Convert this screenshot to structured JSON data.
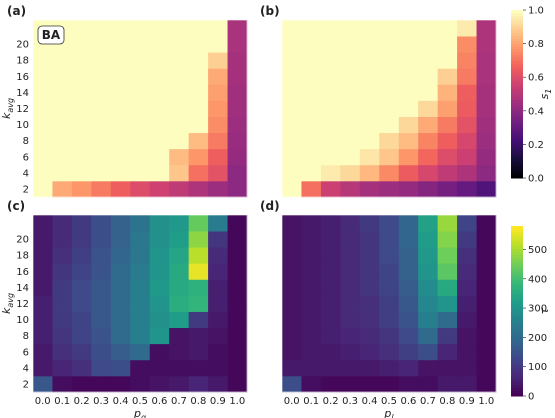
{
  "figure": {
    "panel_labels": [
      "(a)",
      "(b)",
      "(c)",
      "(d)"
    ],
    "inset_label": "BA",
    "ylabel_base": "k",
    "ylabel_sub": "avg",
    "xlabel_left_base": "p",
    "xlabel_left_sub": "g",
    "xlabel_right_base": "p",
    "xlabel_right_sub": "l",
    "colorbar_top_base": "s",
    "colorbar_top_sub": "1",
    "colorbar_bottom_label": "τ"
  },
  "chart_data": [
    {
      "type": "heatmap",
      "panel": "(a)",
      "annotation": "BA",
      "xlabel": "p_g",
      "ylabel": "k_avg",
      "x": [
        0.0,
        0.1,
        0.2,
        0.3,
        0.4,
        0.5,
        0.6,
        0.7,
        0.8,
        0.9,
        1.0
      ],
      "y": [
        2,
        4,
        6,
        8,
        10,
        12,
        14,
        16,
        18,
        20,
        22
      ],
      "colormap": "magma",
      "vmin": 0.0,
      "vmax": 1.0,
      "values": [
        [
          1.0,
          0.82,
          0.78,
          0.72,
          0.66,
          0.6,
          0.56,
          0.52,
          0.48,
          0.44,
          0.4
        ],
        [
          1.0,
          1.0,
          1.0,
          1.0,
          1.0,
          1.0,
          1.0,
          0.88,
          0.7,
          0.62,
          0.4
        ],
        [
          1.0,
          1.0,
          1.0,
          1.0,
          1.0,
          1.0,
          1.0,
          0.86,
          0.78,
          0.66,
          0.42
        ],
        [
          1.0,
          1.0,
          1.0,
          1.0,
          1.0,
          1.0,
          1.0,
          1.0,
          0.86,
          0.72,
          0.43
        ],
        [
          1.0,
          1.0,
          1.0,
          1.0,
          1.0,
          1.0,
          1.0,
          1.0,
          1.0,
          0.76,
          0.44
        ],
        [
          1.0,
          1.0,
          1.0,
          1.0,
          1.0,
          1.0,
          1.0,
          1.0,
          1.0,
          0.78,
          0.45
        ],
        [
          1.0,
          1.0,
          1.0,
          1.0,
          1.0,
          1.0,
          1.0,
          1.0,
          1.0,
          0.8,
          0.45
        ],
        [
          1.0,
          1.0,
          1.0,
          1.0,
          1.0,
          1.0,
          1.0,
          1.0,
          1.0,
          0.82,
          0.46
        ],
        [
          1.0,
          1.0,
          1.0,
          1.0,
          1.0,
          1.0,
          1.0,
          1.0,
          1.0,
          0.9,
          0.46
        ],
        [
          1.0,
          1.0,
          1.0,
          1.0,
          1.0,
          1.0,
          1.0,
          1.0,
          1.0,
          1.0,
          0.47
        ],
        [
          1.0,
          1.0,
          1.0,
          1.0,
          1.0,
          1.0,
          1.0,
          1.0,
          1.0,
          1.0,
          0.47
        ]
      ]
    },
    {
      "type": "heatmap",
      "panel": "(b)",
      "xlabel": "p_l",
      "ylabel": "k_avg",
      "x": [
        0.0,
        0.1,
        0.2,
        0.3,
        0.4,
        0.5,
        0.6,
        0.7,
        0.8,
        0.9,
        1.0
      ],
      "y": [
        2,
        4,
        6,
        8,
        10,
        12,
        14,
        16,
        18,
        20,
        22
      ],
      "colormap": "magma",
      "vmin": 0.0,
      "vmax": 1.0,
      "values": [
        [
          1.0,
          0.7,
          0.55,
          0.5,
          0.46,
          0.44,
          0.42,
          0.38,
          0.34,
          0.3,
          0.25
        ],
        [
          1.0,
          1.0,
          0.96,
          0.92,
          0.85,
          0.75,
          0.65,
          0.58,
          0.52,
          0.48,
          0.4
        ],
        [
          1.0,
          1.0,
          1.0,
          1.0,
          0.95,
          0.88,
          0.78,
          0.68,
          0.6,
          0.55,
          0.42
        ],
        [
          1.0,
          1.0,
          1.0,
          1.0,
          1.0,
          0.92,
          0.86,
          0.74,
          0.66,
          0.58,
          0.44
        ],
        [
          1.0,
          1.0,
          1.0,
          1.0,
          1.0,
          1.0,
          0.92,
          0.82,
          0.72,
          0.62,
          0.45
        ],
        [
          1.0,
          1.0,
          1.0,
          1.0,
          1.0,
          1.0,
          1.0,
          0.92,
          0.8,
          0.65,
          0.46
        ],
        [
          1.0,
          1.0,
          1.0,
          1.0,
          1.0,
          1.0,
          1.0,
          1.0,
          0.84,
          0.66,
          0.46
        ],
        [
          1.0,
          1.0,
          1.0,
          1.0,
          1.0,
          1.0,
          1.0,
          1.0,
          0.9,
          0.72,
          0.47
        ],
        [
          1.0,
          1.0,
          1.0,
          1.0,
          1.0,
          1.0,
          1.0,
          1.0,
          1.0,
          0.74,
          0.47
        ],
        [
          1.0,
          1.0,
          1.0,
          1.0,
          1.0,
          1.0,
          1.0,
          1.0,
          1.0,
          0.76,
          0.48
        ],
        [
          1.0,
          1.0,
          1.0,
          1.0,
          1.0,
          1.0,
          1.0,
          1.0,
          1.0,
          0.96,
          0.48
        ]
      ]
    },
    {
      "type": "heatmap",
      "panel": "(c)",
      "xlabel": "p_g",
      "ylabel": "k_avg",
      "x": [
        0.0,
        0.1,
        0.2,
        0.3,
        0.4,
        0.5,
        0.6,
        0.7,
        0.8,
        0.9,
        1.0
      ],
      "y": [
        2,
        4,
        6,
        8,
        10,
        12,
        14,
        16,
        18,
        20,
        22
      ],
      "colormap": "viridis",
      "vmin": 0,
      "vmax": 580,
      "values": [
        [
          160,
          20,
          10,
          10,
          10,
          20,
          30,
          40,
          60,
          40,
          10
        ],
        [
          40,
          60,
          80,
          130,
          140,
          20,
          20,
          20,
          20,
          20,
          10
        ],
        [
          40,
          80,
          100,
          140,
          170,
          200,
          20,
          30,
          40,
          20,
          10
        ],
        [
          50,
          90,
          120,
          150,
          200,
          250,
          300,
          30,
          40,
          30,
          10
        ],
        [
          50,
          100,
          120,
          160,
          200,
          250,
          290,
          320,
          100,
          40,
          10
        ],
        [
          50,
          100,
          130,
          160,
          200,
          250,
          300,
          360,
          380,
          50,
          10
        ],
        [
          40,
          100,
          130,
          160,
          200,
          250,
          310,
          350,
          370,
          50,
          10
        ],
        [
          40,
          90,
          120,
          150,
          200,
          240,
          300,
          350,
          560,
          60,
          10
        ],
        [
          40,
          80,
          110,
          150,
          190,
          230,
          300,
          340,
          520,
          70,
          10
        ],
        [
          40,
          70,
          100,
          140,
          180,
          230,
          290,
          320,
          480,
          90,
          10
        ],
        [
          40,
          70,
          100,
          140,
          180,
          220,
          290,
          310,
          440,
          240,
          10
        ]
      ]
    },
    {
      "type": "heatmap",
      "panel": "(d)",
      "xlabel": "p_l",
      "ylabel": "k_avg",
      "x": [
        0.0,
        0.1,
        0.2,
        0.3,
        0.4,
        0.5,
        0.6,
        0.7,
        0.8,
        0.9,
        1.0
      ],
      "y": [
        2,
        4,
        6,
        8,
        10,
        12,
        14,
        16,
        18,
        20,
        22
      ],
      "colormap": "viridis",
      "vmin": 0,
      "vmax": 580,
      "values": [
        [
          140,
          20,
          10,
          10,
          10,
          10,
          20,
          20,
          40,
          40,
          10
        ],
        [
          40,
          40,
          40,
          40,
          40,
          50,
          60,
          30,
          30,
          30,
          10
        ],
        [
          30,
          40,
          40,
          50,
          60,
          80,
          110,
          140,
          60,
          30,
          10
        ],
        [
          30,
          40,
          50,
          60,
          70,
          90,
          130,
          200,
          100,
          30,
          10
        ],
        [
          30,
          40,
          50,
          70,
          80,
          110,
          150,
          250,
          200,
          40,
          10
        ],
        [
          30,
          40,
          50,
          70,
          80,
          110,
          160,
          270,
          300,
          50,
          10
        ],
        [
          30,
          40,
          50,
          70,
          90,
          120,
          170,
          280,
          350,
          60,
          10
        ],
        [
          30,
          40,
          50,
          70,
          90,
          120,
          180,
          300,
          430,
          70,
          10
        ],
        [
          30,
          40,
          50,
          70,
          90,
          130,
          180,
          310,
          450,
          80,
          10
        ],
        [
          30,
          40,
          50,
          70,
          90,
          130,
          190,
          320,
          470,
          100,
          10
        ],
        [
          30,
          40,
          50,
          70,
          100,
          130,
          190,
          330,
          490,
          120,
          10
        ]
      ]
    }
  ],
  "axes": {
    "x_ticks": [
      "0.0",
      "0.1",
      "0.2",
      "0.3",
      "0.4",
      "0.5",
      "0.6",
      "0.7",
      "0.8",
      "0.9",
      "1.0"
    ],
    "y_ticks": [
      "2",
      "4",
      "6",
      "8",
      "10",
      "12",
      "14",
      "16",
      "18",
      "20"
    ],
    "colorbar_top_ticks": [
      "0.0",
      "0.2",
      "0.4",
      "0.6",
      "0.8",
      "1.0"
    ],
    "colorbar_bottom_ticks": [
      "0",
      "100",
      "200",
      "300",
      "400",
      "500"
    ]
  }
}
